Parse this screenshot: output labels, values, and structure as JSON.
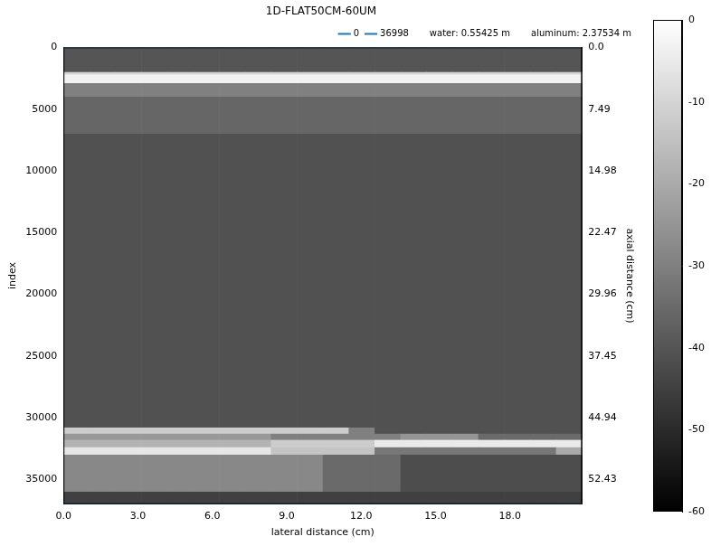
{
  "chart_data": {
    "type": "heatmap",
    "title": "1D-FLAT50CM-60UM",
    "x_label": "lateral distance (cm)",
    "y_label": "index",
    "y2_label": "axial distance (cm)",
    "xlim": [
      0,
      20.9
    ],
    "xticks": [
      {
        "value": 0,
        "label": "0.0"
      },
      {
        "value": 3,
        "label": "3.0"
      },
      {
        "value": 6,
        "label": "6.0"
      },
      {
        "value": 9,
        "label": "9.0"
      },
      {
        "value": 12,
        "label": "12.0"
      },
      {
        "value": 15,
        "label": "15.0"
      },
      {
        "value": 18,
        "label": "18.0"
      }
    ],
    "ylim": [
      36998,
      0
    ],
    "yticks": [
      0,
      5000,
      10000,
      15000,
      20000,
      25000,
      30000,
      35000
    ],
    "y2lim": [
      55.425,
      0
    ],
    "y2ticks": [
      {
        "value": 0,
        "label": "0.0"
      },
      7.49,
      14.98,
      22.47,
      29.96,
      37.45,
      44.94,
      52.43
    ],
    "grid": false,
    "legend": "upper right",
    "series": [
      {
        "name": "0",
        "color": "#1f77b4",
        "y": 0
      },
      {
        "name": "36998",
        "color": "#1f77b4",
        "y": 36998
      }
    ],
    "notes": [
      "water: 0.55425 m",
      "aluminum: 2.37534 m"
    ],
    "cells": {
      "x_edges": [
        0,
        1.045,
        2.09,
        3.135,
        4.18,
        5.225,
        6.27,
        7.315,
        8.36,
        9.405,
        10.45,
        11.495,
        12.54,
        13.585,
        14.63,
        15.675,
        16.72,
        17.765,
        18.81,
        19.855,
        20.9
      ],
      "y_edges": [
        0,
        2000,
        2200,
        2900,
        4000,
        7000,
        30800,
        31300,
        31800,
        32400,
        33000,
        36000,
        36998
      ],
      "values": [
        [
          -40,
          -40,
          -40,
          -40,
          -40,
          -40,
          -40,
          -40,
          -40,
          -40,
          -40,
          -40,
          -40,
          -40,
          -40,
          -40,
          -40,
          -40,
          -40,
          -40
        ],
        [
          -10,
          -10,
          -10,
          -10,
          -10,
          -10,
          -10,
          -10,
          -10,
          -10,
          -10,
          -10,
          -10,
          -10,
          -10,
          -10,
          -10,
          -10,
          -10,
          -10
        ],
        [
          -3,
          -3,
          -3,
          -3,
          -3,
          -3,
          -3,
          -3,
          -3,
          -3,
          -3,
          -3,
          -3,
          -3,
          -3,
          -3,
          -3,
          -3,
          -3,
          -3
        ],
        [
          -30,
          -30,
          -30,
          -30,
          -30,
          -30,
          -30,
          -30,
          -30,
          -30,
          -30,
          -30,
          -30,
          -30,
          -30,
          -30,
          -30,
          -30,
          -30,
          -30
        ],
        [
          -36,
          -36,
          -36,
          -36,
          -36,
          -36,
          -36,
          -36,
          -36,
          -36,
          -36,
          -36,
          -36,
          -36,
          -36,
          -36,
          -36,
          -36,
          -36,
          -36
        ],
        [
          -41,
          -41,
          -41,
          -41,
          -41,
          -41,
          -41,
          -41,
          -41,
          -41,
          -41,
          -41,
          -41,
          -41,
          -41,
          -41,
          -41,
          -41,
          -41,
          -41
        ],
        [
          -12,
          -12,
          -12,
          -12,
          -12,
          -12,
          -12,
          -12,
          -12,
          -12,
          -12,
          -30,
          -41,
          -41,
          -41,
          -41,
          -41,
          -41,
          -41,
          -41
        ],
        [
          -24,
          -24,
          -24,
          -24,
          -24,
          -24,
          -24,
          -24,
          -30,
          -30,
          -30,
          -30,
          -30,
          -25,
          -25,
          -25,
          -35,
          -35,
          -35,
          -35
        ],
        [
          -18,
          -18,
          -18,
          -18,
          -18,
          -18,
          -18,
          -18,
          -12,
          -12,
          -12,
          -12,
          -5,
          -5,
          -5,
          -5,
          -5,
          -5,
          -5,
          -5
        ],
        [
          -6,
          -6,
          -6,
          -6,
          -6,
          -6,
          -6,
          -6,
          -14,
          -14,
          -14,
          -14,
          -32,
          -32,
          -32,
          -32,
          -32,
          -32,
          -32,
          -20
        ],
        [
          -28,
          -28,
          -28,
          -28,
          -28,
          -28,
          -28,
          -28,
          -28,
          -28,
          -35,
          -35,
          -35,
          -42,
          -42,
          -42,
          -42,
          -42,
          -42,
          -42
        ],
        [
          -45,
          -45,
          -45,
          -45,
          -45,
          -45,
          -45,
          -45,
          -45,
          -45,
          -45,
          -45,
          -45,
          -45,
          -45,
          -45,
          -45,
          -45,
          -45,
          -45
        ]
      ]
    },
    "colorbar": {
      "range": [
        -60,
        0
      ],
      "ticks": [
        -60,
        -50,
        -40,
        -30,
        -20,
        -10,
        0
      ]
    }
  }
}
